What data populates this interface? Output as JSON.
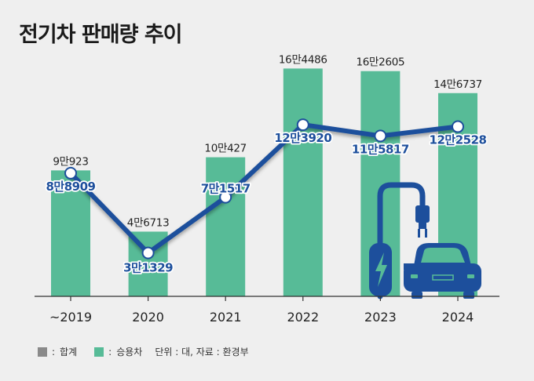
{
  "title": "전기차 판매량 추이",
  "chart_data": {
    "type": "bar",
    "categories": [
      "~2019",
      "2020",
      "2021",
      "2022",
      "2023",
      "2024"
    ],
    "series": [
      {
        "name": "합계",
        "type": "line",
        "values": [
          88909,
          31329,
          71517,
          123920,
          115817,
          122528
        ],
        "labels": [
          "8만8909",
          "3만1329",
          "7만1517",
          "12만3920",
          "11만5817",
          "12만2528"
        ],
        "color": "#1d4f9c"
      },
      {
        "name": "승용차",
        "type": "bar",
        "values": [
          90923,
          46713,
          100427,
          164486,
          162605,
          146737
        ],
        "labels": [
          "9만923",
          "4만6713",
          "10만427",
          "16만4486",
          "16만2605",
          "14만6737"
        ],
        "color": "#57bb97"
      }
    ],
    "ylim": [
      0,
      180000
    ],
    "grid": false
  },
  "legend": {
    "items": [
      {
        "label": "합계",
        "color": "#8a8a8a"
      },
      {
        "label": "승용차",
        "color": "#57bb97"
      }
    ],
    "sep": ":",
    "note": "단위 : 대, 자료 : 환경부"
  },
  "icons": [
    "ev-charger-icon",
    "car-icon"
  ]
}
